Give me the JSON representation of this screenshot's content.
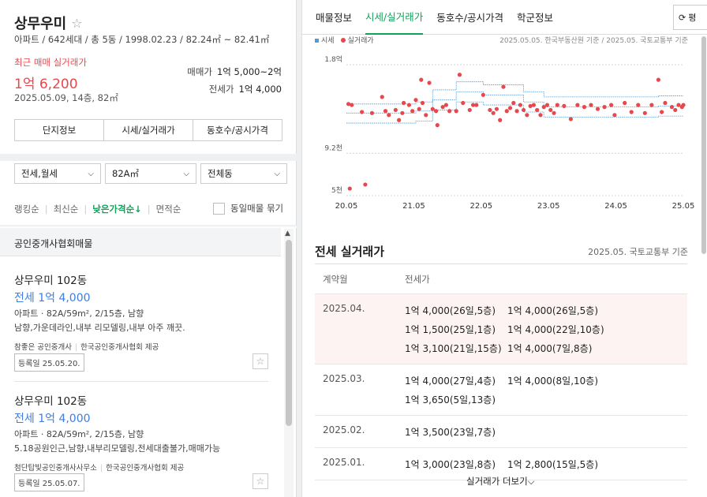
{
  "summary": {
    "title": "상무우미",
    "meta": "아파트 / 642세대 / 총 5동 / 1998.02.23 / 82.24㎡ ~ 82.41㎡",
    "recent_label": "최근 매매 실거래가",
    "recent_price": "1억 6,200",
    "recent_date": "2025.05.09, 14층, 82㎡",
    "sale_key": "매매가",
    "sale_value": "1억 5,000~2억",
    "jeonse_key": "전세가",
    "jeonse_value": "1억 4,000",
    "tabs": [
      "단지정보",
      "시세/실거래가",
      "동호수/공시가격"
    ]
  },
  "filters": {
    "trade_type": "전세,월세",
    "area": "82A㎡",
    "building": "전체동"
  },
  "sort": {
    "items": [
      "랭킹순",
      "최신순",
      "낮은가격순↓",
      "면적순"
    ],
    "group_label": "동일매물 묶기"
  },
  "listings": {
    "section_title": "공인중개사협회매물",
    "items": [
      {
        "name": "상무우미 102동",
        "price": "전세 1억 4,000",
        "spec": "아파트 · 82A/59m², 2/15층, 남향",
        "desc": "남향,가운데라인,내부 리모델링,내부 아주 깨끗.",
        "agent": "참좋은 공인중개사",
        "provider": "한국공인중개사협회 제공",
        "reg_date": "등록일 25.05.20."
      },
      {
        "name": "상무우미 102동",
        "price": "전세 1억 4,000",
        "spec": "아파트 · 82A/59m², 2/15층, 남향",
        "desc": "5.18공원인근,남향,내부리모델링,전세대출불가,매매가능",
        "agent": "첨단탑빛공인중개사사무소",
        "provider": "한국공인중개사협회 제공",
        "reg_date": "등록일 25.05.07."
      }
    ]
  },
  "right_tabs": [
    "매물정보",
    "시세/실거래가",
    "동호수/공시가격",
    "학군정보"
  ],
  "right_tab_more": "평",
  "legend": {
    "market": "시세",
    "actual": "실거래가"
  },
  "chart_source": "2025.05.05. 한국부동산원 기준 / 2025.05. 국토교통부 기준",
  "chart_data": {
    "type": "scatter",
    "title": "",
    "xlabel": "",
    "ylabel": "",
    "x_tick_labels": [
      "20.05",
      "21.05",
      "22.05",
      "23.05",
      "24.05",
      "25.05"
    ],
    "y_tick_labels": [
      "1.8억",
      "9.2천",
      "5천"
    ],
    "ylim": [
      5000,
      18000
    ],
    "series": [
      {
        "name": "시세",
        "type": "line",
        "color": "#4a9cde",
        "bands": [
          {
            "x": [
              2020.37,
              2021.0,
              2021.4,
              2021.55,
              2021.65,
              2021.8,
              2022.0,
              2022.2,
              2022.4,
              2022.8,
              2023.0,
              2023.2,
              2023.3,
              2023.6,
              2024.0,
              2024.5,
              2025.0,
              2025.37
            ],
            "y": [
              14100,
              14100,
              14300,
              14300,
              15500,
              15500,
              16300,
              16300,
              16000,
              16000,
              15300,
              15300,
              14800,
              14800,
              14800,
              14800,
              14900,
              14900
            ]
          },
          {
            "x": [
              2020.37,
              2021.0,
              2021.4,
              2021.55,
              2021.65,
              2021.8,
              2022.0,
              2022.2,
              2022.4,
              2022.8,
              2023.0,
              2023.2,
              2023.3,
              2023.6,
              2024.0,
              2024.5,
              2025.0,
              2025.37
            ],
            "y": [
              13200,
              13200,
              13400,
              13400,
              14500,
              14500,
              15300,
              15300,
              15000,
              15000,
              14300,
              14300,
              13800,
              13800,
              13800,
              13800,
              13900,
              13900
            ]
          },
          {
            "x": [
              2020.37,
              2021.0,
              2021.4,
              2021.55,
              2021.65,
              2021.8,
              2022.0,
              2022.2,
              2022.4,
              2022.8,
              2023.0,
              2023.2,
              2023.3,
              2023.6,
              2024.0,
              2024.5,
              2025.0,
              2025.37
            ],
            "y": [
              12200,
              12200,
              12400,
              12400,
              13500,
              13500,
              14300,
              14300,
              14000,
              14000,
              13300,
              13300,
              12800,
              12800,
              12800,
              12800,
              12900,
              12900
            ]
          }
        ]
      },
      {
        "name": "실거래가",
        "type": "scatter",
        "color": "#e6484d",
        "x": [
          2020.4,
          2020.45,
          2020.6,
          2020.75,
          2020.9,
          2020.95,
          2021.0,
          2021.1,
          2021.15,
          2021.2,
          2021.22,
          2021.3,
          2021.35,
          2021.4,
          2021.45,
          2021.48,
          2021.5,
          2021.55,
          2021.6,
          2021.65,
          2021.7,
          2021.72,
          2021.8,
          2021.85,
          2021.9,
          2022.0,
          2022.05,
          2022.1,
          2022.2,
          2022.25,
          2022.3,
          2022.4,
          2022.5,
          2022.55,
          2022.6,
          2022.65,
          2022.7,
          2022.75,
          2022.8,
          2022.85,
          2022.9,
          2022.95,
          2023.0,
          2023.05,
          2023.1,
          2023.15,
          2023.2,
          2023.25,
          2023.3,
          2023.35,
          2023.4,
          2023.45,
          2023.5,
          2023.6,
          2023.7,
          2023.8,
          2023.9,
          2024.0,
          2024.1,
          2024.2,
          2024.3,
          2024.35,
          2024.5,
          2024.6,
          2024.7,
          2024.8,
          2024.9,
          2025.0,
          2025.05,
          2025.1,
          2025.2,
          2025.25,
          2025.3,
          2025.35,
          2025.37,
          2020.42,
          2020.65
        ],
        "y": [
          14100,
          14000,
          13300,
          13200,
          14800,
          13400,
          13000,
          13500,
          12500,
          13200,
          14200,
          14000,
          13400,
          14500,
          13600,
          16500,
          14200,
          13000,
          16200,
          13600,
          13400,
          12000,
          13800,
          14000,
          13400,
          13400,
          17000,
          14200,
          13500,
          14000,
          14000,
          15000,
          13500,
          13200,
          13600,
          12500,
          15800,
          13400,
          13700,
          14200,
          13400,
          14000,
          13500,
          13000,
          13900,
          14000,
          13500,
          13000,
          13800,
          14000,
          13500,
          13200,
          14000,
          13900,
          12600,
          14000,
          13800,
          14000,
          13600,
          13800,
          14000,
          13000,
          14200,
          13300,
          14000,
          13200,
          14000,
          16500,
          13300,
          14200,
          13800,
          13500,
          14000,
          13800,
          14000,
          5700,
          6100
        ]
      }
    ]
  },
  "jeonse": {
    "title": "전세 실거래가",
    "source": "2025.05. 국토교통부 기준",
    "col_date": "계약월",
    "col_price": "전세가",
    "rows": [
      {
        "month": "2025.04.",
        "lines": [
          [
            "1억 4,000(26일,5층)",
            "1억 4,000(26일,5층)"
          ],
          [
            "1억 1,500(25일,1층)",
            "1억 4,000(22일,10층)"
          ],
          [
            "1억 3,100(21일,15층)",
            "1억 4,000(7일,8층)"
          ]
        ]
      },
      {
        "month": "2025.03.",
        "lines": [
          [
            "1억 4,000(27일,4층)",
            "1억 4,000(8일,10층)"
          ],
          [
            "1억 3,650(5일,13층)",
            ""
          ]
        ]
      },
      {
        "month": "2025.02.",
        "lines": [
          [
            "1억 3,500(23일,7층)",
            ""
          ]
        ]
      },
      {
        "month": "2025.01.",
        "lines": [
          [
            "1억 3,000(23일,8층)",
            "1억 2,800(15일,5층)"
          ]
        ]
      }
    ],
    "more_label": "실거래가 더보기"
  }
}
